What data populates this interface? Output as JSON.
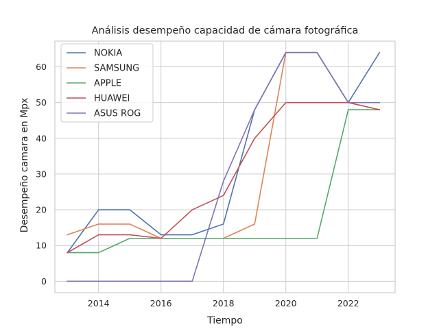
{
  "chart_data": {
    "type": "line",
    "title": "Análisis desempeño capacidad de cámara fotográfica",
    "xlabel": "Tiempo",
    "ylabel": "Desempeño camara en Mpx",
    "x": [
      2013,
      2014,
      2015,
      2016,
      2017,
      2018,
      2019,
      2020,
      2021,
      2022,
      2023
    ],
    "xlim": [
      2012.6,
      2023.5
    ],
    "ylim": [
      -3.2,
      67.2
    ],
    "xticks": [
      2014,
      2016,
      2018,
      2020,
      2022
    ],
    "xtick_labels": [
      "2014",
      "2016",
      "2018",
      "2020",
      "2022"
    ],
    "yticks": [
      0,
      10,
      20,
      30,
      40,
      50,
      60
    ],
    "ytick_labels": [
      "0",
      "10",
      "20",
      "30",
      "40",
      "50",
      "60"
    ],
    "grid": true,
    "legend_position": "top-left",
    "series": [
      {
        "name": "NOKIA",
        "color": "#4c72b0",
        "values": [
          8,
          20,
          20,
          13,
          13,
          16,
          48,
          64,
          64,
          50,
          64
        ]
      },
      {
        "name": "SAMSUNG",
        "color": "#dd8452",
        "values": [
          13,
          16,
          16,
          12,
          12,
          12,
          16,
          64,
          64,
          50,
          48
        ]
      },
      {
        "name": "APPLE",
        "color": "#55a868",
        "values": [
          8,
          8,
          12,
          12,
          12,
          12,
          12,
          12,
          12,
          48,
          48
        ]
      },
      {
        "name": "HUAWEI",
        "color": "#c44e52",
        "values": [
          8,
          13,
          13,
          12,
          20,
          24,
          40,
          50,
          50,
          50,
          48
        ]
      },
      {
        "name": "ASUS ROG",
        "color": "#8172b3",
        "values": [
          0,
          0,
          0,
          0,
          0,
          28,
          48,
          64,
          64,
          50,
          50
        ]
      }
    ]
  }
}
